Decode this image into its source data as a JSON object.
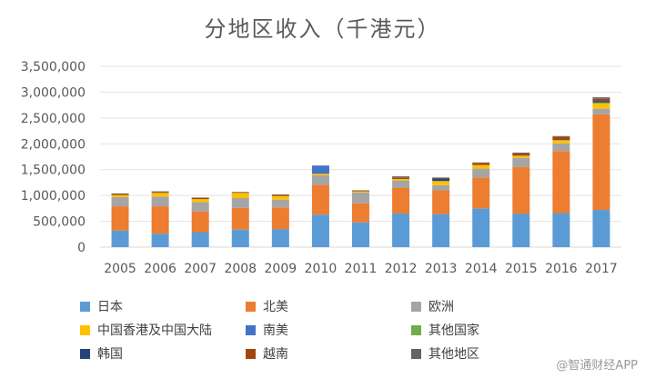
{
  "watermark": "@智通财经APP",
  "chart_data": {
    "type": "bar",
    "stacked": true,
    "title": "分地区收入（千港元）",
    "xlabel": "",
    "ylabel": "",
    "ylim": [
      0,
      3500000
    ],
    "yticks": [
      0,
      500000,
      1000000,
      1500000,
      2000000,
      2500000,
      3000000,
      3500000
    ],
    "ytick_labels": [
      "0",
      "500,000",
      "1,000,000",
      "1,500,000",
      "2,000,000",
      "2,500,000",
      "3,000,000",
      "3,500,000"
    ],
    "grid": true,
    "legend_position": "bottom",
    "categories": [
      "2005",
      "2006",
      "2007",
      "2008",
      "2009",
      "2010",
      "2011",
      "2012",
      "2013",
      "2014",
      "2015",
      "2016",
      "2017"
    ],
    "series": [
      {
        "name": "日本",
        "color": "#5B9BD5",
        "values": [
          320000,
          260000,
          290000,
          340000,
          350000,
          630000,
          480000,
          650000,
          640000,
          750000,
          650000,
          660000,
          720000
        ]
      },
      {
        "name": "北美",
        "color": "#ED7D31",
        "values": [
          470000,
          530000,
          400000,
          420000,
          420000,
          580000,
          370000,
          500000,
          460000,
          600000,
          900000,
          1200000,
          1850000
        ]
      },
      {
        "name": "欧洲",
        "color": "#A5A5A5",
        "values": [
          180000,
          190000,
          180000,
          190000,
          150000,
          180000,
          210000,
          140000,
          100000,
          170000,
          180000,
          150000,
          110000
        ]
      },
      {
        "name": "中国香港及中国大陆",
        "color": "#FFC000",
        "values": [
          40000,
          70000,
          60000,
          100000,
          70000,
          30000,
          20000,
          30000,
          80000,
          70000,
          40000,
          60000,
          100000
        ]
      },
      {
        "name": "南美",
        "color": "#4472C4",
        "values": [
          0,
          0,
          0,
          0,
          0,
          160000,
          0,
          0,
          0,
          0,
          0,
          0,
          0
        ]
      },
      {
        "name": "其他国家",
        "color": "#70AD47",
        "values": [
          0,
          0,
          0,
          0,
          0,
          0,
          0,
          0,
          0,
          0,
          0,
          0,
          20000
        ]
      },
      {
        "name": "韩国",
        "color": "#264478",
        "values": [
          0,
          0,
          0,
          0,
          0,
          0,
          0,
          0,
          50000,
          0,
          0,
          0,
          30000
        ]
      },
      {
        "name": "越南",
        "color": "#9E480E",
        "values": [
          20000,
          20000,
          20000,
          10000,
          20000,
          0,
          10000,
          30000,
          10000,
          40000,
          40000,
          60000,
          40000
        ]
      },
      {
        "name": "其他地区",
        "color": "#636363",
        "values": [
          10000,
          10000,
          10000,
          10000,
          10000,
          0,
          10000,
          20000,
          10000,
          10000,
          20000,
          20000,
          30000
        ]
      }
    ]
  }
}
